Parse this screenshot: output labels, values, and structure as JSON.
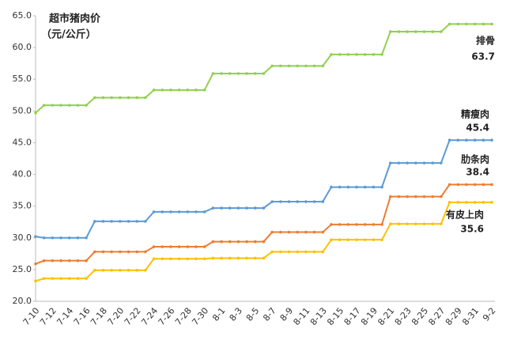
{
  "chart_data": {
    "type": "line",
    "title": "超市猪肉价",
    "subtitle": "（元/公斤）",
    "categories": [
      "7-10",
      null,
      "7-12",
      null,
      "7-14",
      null,
      "7-16",
      null,
      "7-18",
      null,
      "7-20",
      null,
      "7-22",
      null,
      "7-24",
      null,
      "7-26",
      null,
      "7-28",
      null,
      "7-30",
      null,
      "8-1",
      null,
      "8-3",
      null,
      "8-5",
      null,
      "8-7",
      null,
      "8-9",
      null,
      "8-11",
      null,
      "8-13",
      null,
      "8-15",
      null,
      "8-17",
      null,
      "8-19",
      null,
      "8-21",
      null,
      "8-23",
      null,
      "8-25",
      null,
      "8-27",
      null,
      "8-29",
      null,
      "8-31",
      null,
      "9-2"
    ],
    "ylim": [
      20,
      65
    ],
    "yticks": [
      {
        "value": 20,
        "label": "20.0"
      },
      {
        "value": 25,
        "label": "25.0"
      },
      {
        "value": 30,
        "label": "30.0"
      },
      {
        "value": 35,
        "label": "35.0"
      },
      {
        "value": 40,
        "label": "40.0"
      },
      {
        "value": 45,
        "label": "45.0"
      },
      {
        "value": 50,
        "label": "50.0"
      },
      {
        "value": 55,
        "label": "55.0"
      },
      {
        "value": 60,
        "label": "60.0"
      },
      {
        "value": 65,
        "label": "65.0"
      }
    ],
    "series": [
      {
        "name": "排骨",
        "color": "#92d050",
        "values": [
          49.7,
          50.9,
          50.9,
          50.9,
          50.9,
          50.9,
          50.9,
          52.1,
          52.1,
          52.1,
          52.1,
          52.1,
          52.1,
          52.1,
          53.3,
          53.3,
          53.3,
          53.3,
          53.3,
          53.3,
          53.3,
          55.9,
          55.9,
          55.9,
          55.9,
          55.9,
          55.9,
          55.9,
          57.1,
          57.1,
          57.1,
          57.1,
          57.1,
          57.1,
          57.1,
          58.9,
          58.9,
          58.9,
          58.9,
          58.9,
          58.9,
          58.9,
          62.5,
          62.5,
          62.5,
          62.5,
          62.5,
          62.5,
          62.5,
          63.7,
          63.7,
          63.7,
          63.7,
          63.7,
          63.7
        ]
      },
      {
        "name": "精瘦肉",
        "color": "#5b9bd5",
        "values": [
          30.2,
          30.0,
          30.0,
          30.0,
          30.0,
          30.0,
          30.0,
          32.6,
          32.6,
          32.6,
          32.6,
          32.6,
          32.6,
          32.6,
          34.1,
          34.1,
          34.1,
          34.1,
          34.1,
          34.1,
          34.1,
          34.7,
          34.7,
          34.7,
          34.7,
          34.7,
          34.7,
          34.7,
          35.7,
          35.7,
          35.7,
          35.7,
          35.7,
          35.7,
          35.7,
          38.0,
          38.0,
          38.0,
          38.0,
          38.0,
          38.0,
          38.0,
          41.8,
          41.8,
          41.8,
          41.8,
          41.8,
          41.8,
          41.8,
          45.4,
          45.4,
          45.4,
          45.4,
          45.4,
          45.4
        ]
      },
      {
        "name": "肋条肉",
        "color": "#ed7d31",
        "values": [
          25.9,
          26.4,
          26.4,
          26.4,
          26.4,
          26.4,
          26.4,
          27.8,
          27.8,
          27.8,
          27.8,
          27.8,
          27.8,
          27.8,
          28.6,
          28.6,
          28.6,
          28.6,
          28.6,
          28.6,
          28.6,
          29.4,
          29.4,
          29.4,
          29.4,
          29.4,
          29.4,
          29.4,
          30.9,
          30.9,
          30.9,
          30.9,
          30.9,
          30.9,
          30.9,
          32.1,
          32.1,
          32.1,
          32.1,
          32.1,
          32.1,
          32.1,
          36.5,
          36.5,
          36.5,
          36.5,
          36.5,
          36.5,
          36.5,
          38.4,
          38.4,
          38.4,
          38.4,
          38.4,
          38.4
        ]
      },
      {
        "name": "有皮上肉",
        "color": "#ffc000",
        "values": [
          23.2,
          23.6,
          23.6,
          23.6,
          23.6,
          23.6,
          23.6,
          24.9,
          24.9,
          24.9,
          24.9,
          24.9,
          24.9,
          24.9,
          26.7,
          26.7,
          26.7,
          26.7,
          26.7,
          26.7,
          26.7,
          26.8,
          26.8,
          26.8,
          26.8,
          26.8,
          26.8,
          26.8,
          27.8,
          27.8,
          27.8,
          27.8,
          27.8,
          27.8,
          27.8,
          29.7,
          29.7,
          29.7,
          29.7,
          29.7,
          29.7,
          29.7,
          32.2,
          32.2,
          32.2,
          32.2,
          32.2,
          32.2,
          32.2,
          35.6,
          35.6,
          35.6,
          35.6,
          35.6,
          35.6
        ]
      }
    ]
  }
}
